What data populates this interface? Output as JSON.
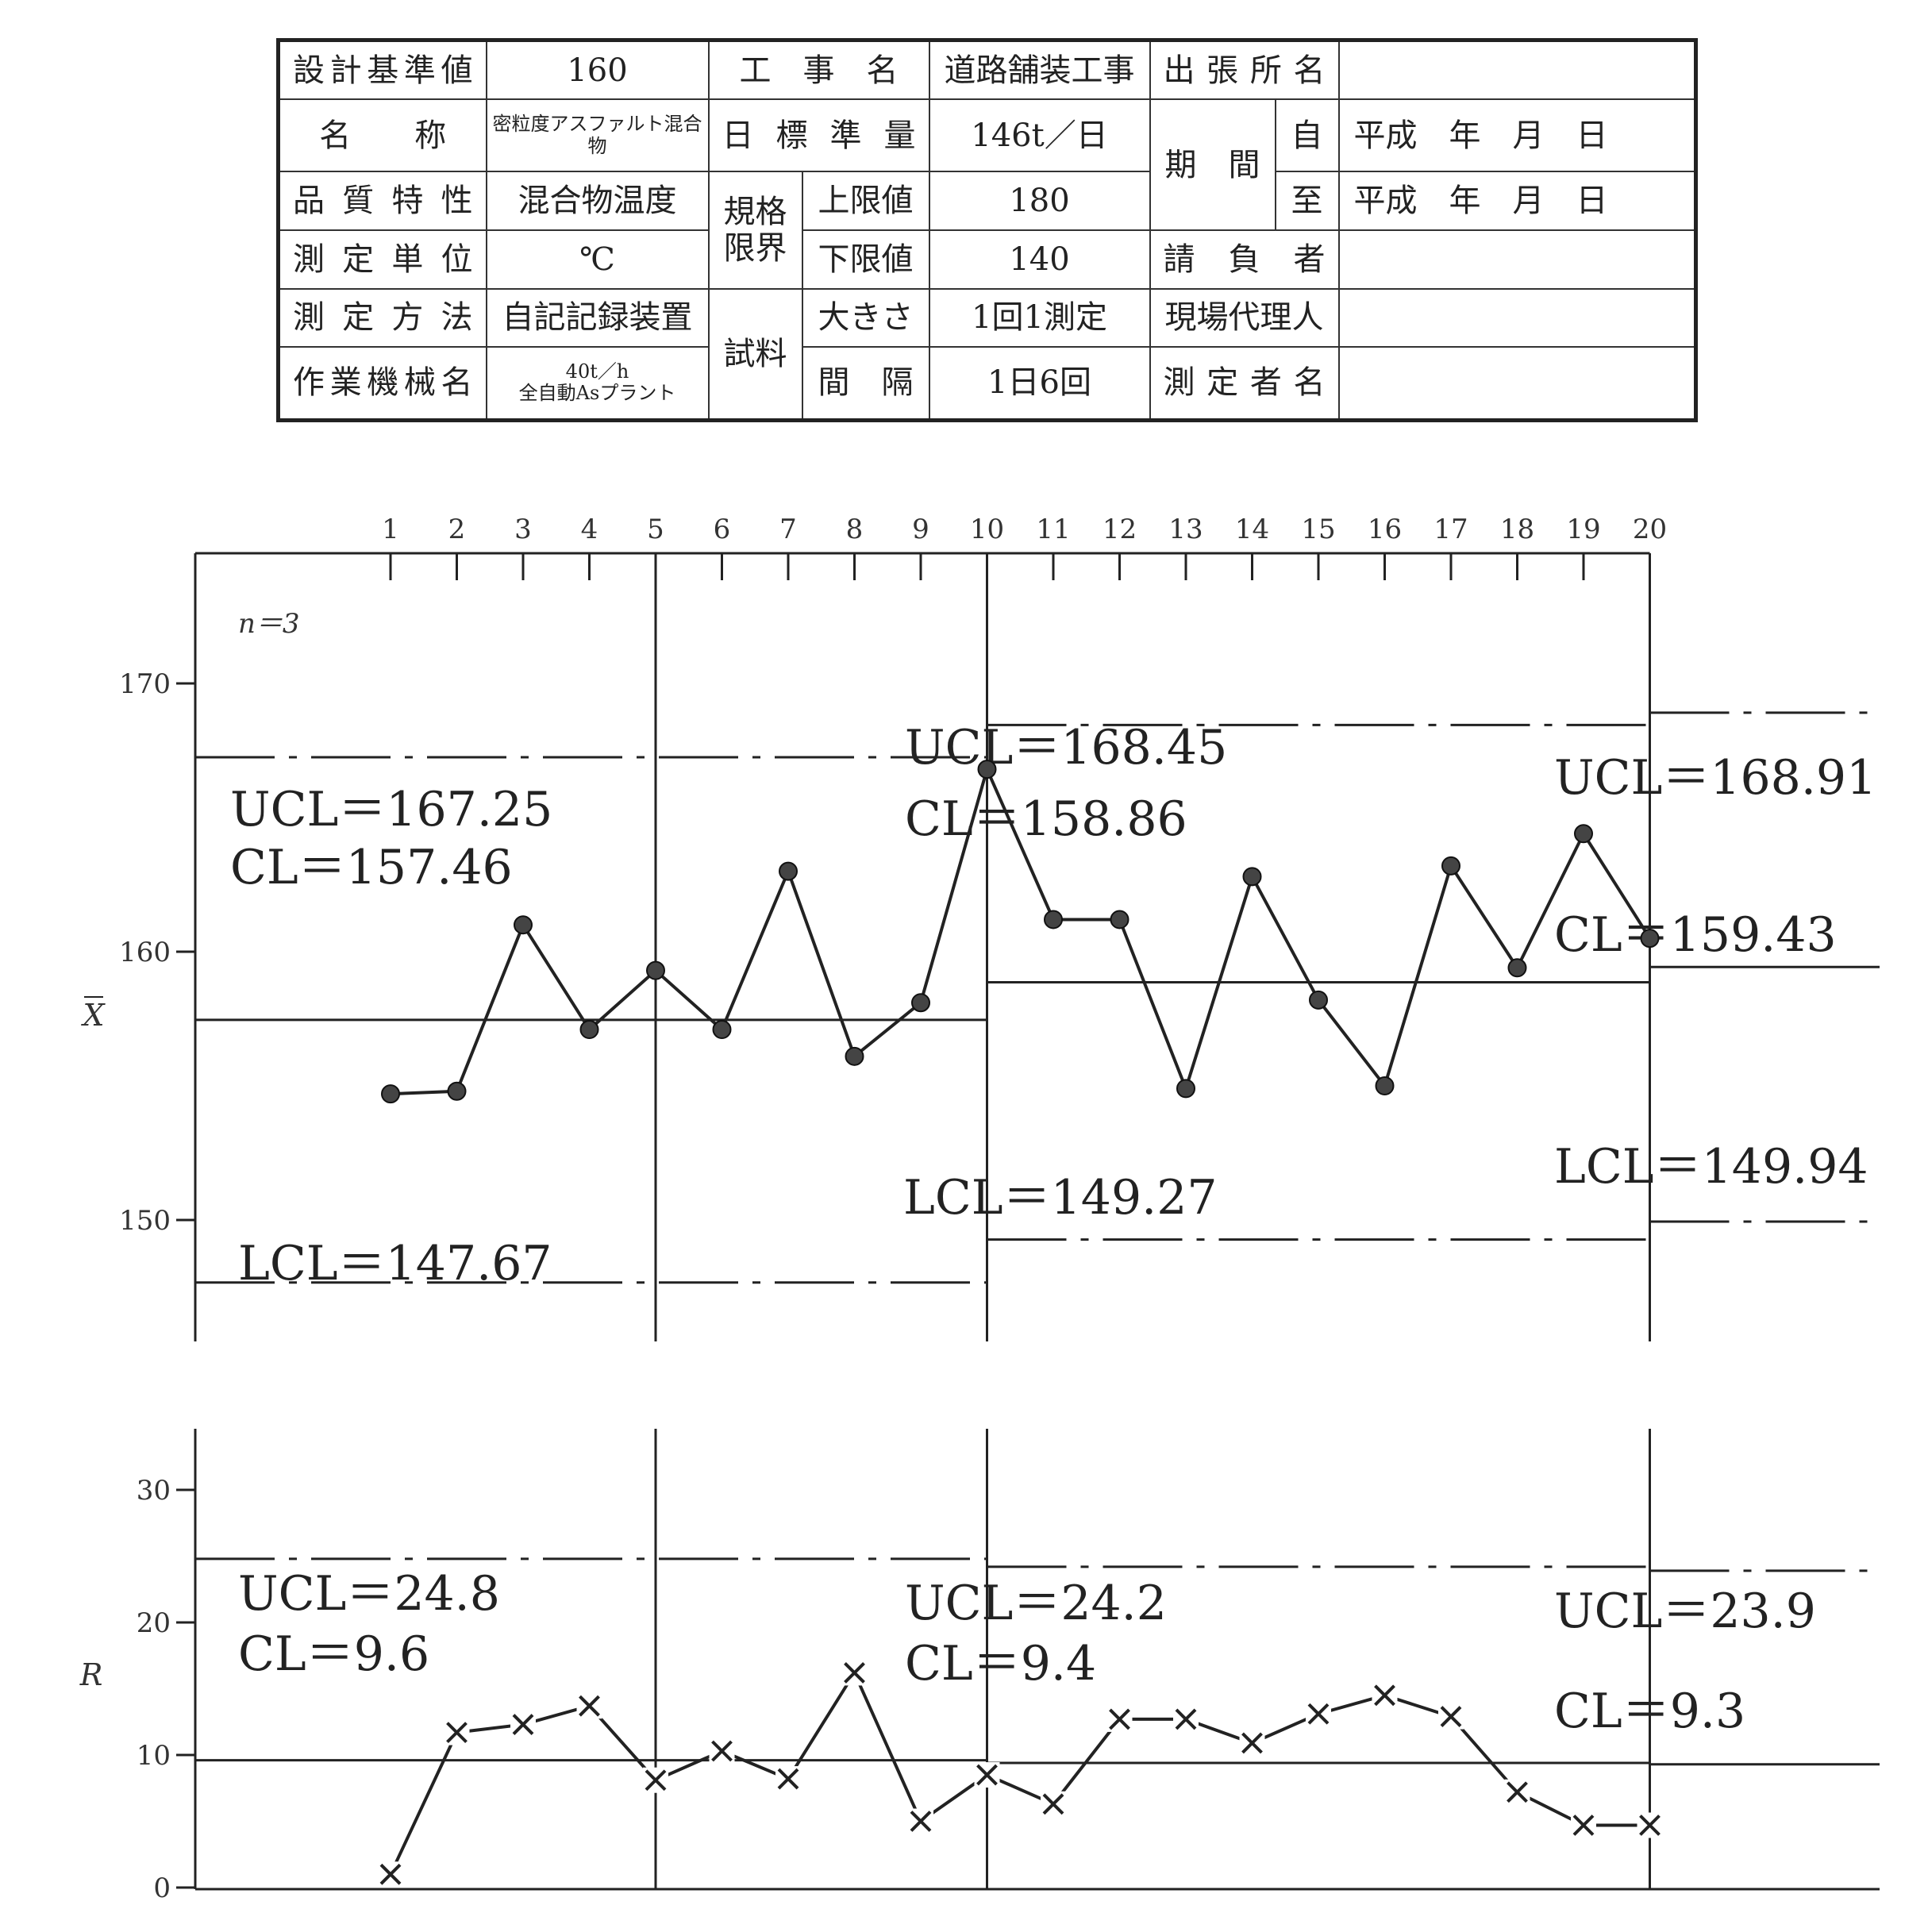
{
  "info_table": {
    "design_standard_label": "設計基準値",
    "design_standard_value": "160",
    "project_label": "工　事　名",
    "project_value": "道路舗装工事",
    "office_label": "出張所名",
    "office_value": "",
    "name_label": "名　　称",
    "name_value": "密粒度アスファルト混合物",
    "daily_target_label": "日標準量",
    "daily_target_value": "146t／日",
    "period_label": "期　間",
    "period_from_label": "自",
    "period_from_value": "平成　年　月　日",
    "period_to_label": "至",
    "period_to_value": "平成　年　月　日",
    "quality_label": "品質特性",
    "quality_value": "混合物温度",
    "spec_limit_label": "規格限界",
    "upper_limit_label": "上限値",
    "upper_limit_value": "180",
    "unit_label": "測定単位",
    "unit_value": "℃",
    "lower_limit_label": "下限値",
    "lower_limit_value": "140",
    "contractor_label": "請　負　者",
    "contractor_value": "",
    "method_label": "測定方法",
    "method_value": "自記記録装置",
    "sample_label": "試料",
    "size_label": "大きさ",
    "size_value": "1回1測定",
    "agent_label": "現場代理人",
    "agent_value": "",
    "machine_label": "作業機械名",
    "machine_value_line1": "40t／h",
    "machine_value_line2": "全自動Asプラント",
    "interval_label": "間　隔",
    "interval_value": "1日6回",
    "measurer_label": "測定者名",
    "measurer_value": ""
  },
  "chart_data": [
    {
      "type": "line",
      "chart": "xbar",
      "axis_symbol": "X",
      "sample_size_label": "n＝3",
      "x": [
        1,
        2,
        3,
        4,
        5,
        6,
        7,
        8,
        9,
        10,
        11,
        12,
        13,
        14,
        15,
        16,
        17,
        18,
        19,
        20
      ],
      "x_tick_labels": [
        "1",
        "2",
        "3",
        "4",
        "5",
        "6",
        "7",
        "8",
        "9",
        "10",
        "11",
        "12",
        "13",
        "14",
        "15",
        "16",
        "17",
        "18",
        "19",
        "20"
      ],
      "values": [
        154.7,
        154.8,
        161.0,
        157.1,
        159.3,
        157.1,
        163.0,
        156.1,
        158.1,
        166.8,
        161.2,
        161.2,
        154.9,
        162.8,
        158.2,
        155.0,
        163.2,
        159.4,
        164.4,
        160.5
      ],
      "ylim": [
        144,
        174
      ],
      "y_ticks": [
        150,
        160,
        170
      ],
      "point_marker": "circle",
      "control_limits": [
        {
          "x_range": [
            0,
            10
          ],
          "UCL": 167.25,
          "CL": 157.46,
          "LCL": 147.67,
          "UCL_label": "UCL＝167.25",
          "CL_label": "CL＝157.46",
          "LCL_label": "LCL＝147.67"
        },
        {
          "x_range": [
            10,
            20
          ],
          "UCL": 168.45,
          "CL": 158.86,
          "LCL": 149.27,
          "UCL_label": "UCL＝168.45",
          "CL_label": "CL＝158.86",
          "LCL_label": "LCL＝149.27"
        },
        {
          "x_range": [
            20,
            25.3
          ],
          "UCL": 168.91,
          "CL": 159.43,
          "LCL": 149.94,
          "UCL_label": "UCL＝168.91",
          "CL_label": "CL＝159.43",
          "LCL_label": "LCL＝149.94"
        }
      ]
    },
    {
      "type": "line",
      "chart": "range",
      "axis_symbol": "R",
      "x": [
        1,
        2,
        3,
        4,
        5,
        6,
        7,
        8,
        9,
        10,
        11,
        12,
        13,
        14,
        15,
        16,
        17,
        18,
        19,
        20
      ],
      "values": [
        1,
        11.7,
        12.3,
        13.7,
        8.1,
        10.3,
        8.2,
        16.2,
        5.0,
        8.5,
        6.3,
        12.7,
        12.7,
        10.9,
        13.1,
        14.5,
        12.9,
        7.2,
        4.7,
        4.7
      ],
      "ylim": [
        0,
        35
      ],
      "y_ticks": [
        0,
        10,
        20,
        30
      ],
      "point_marker": "cross",
      "control_limits": [
        {
          "x_range": [
            0,
            10
          ],
          "UCL": 24.8,
          "CL": 9.6,
          "UCL_label": "UCL＝24.8",
          "CL_label": "CL＝9.6"
        },
        {
          "x_range": [
            10,
            20
          ],
          "UCL": 24.2,
          "CL": 9.4,
          "UCL_label": "UCL＝24.2",
          "CL_label": "CL＝9.4"
        },
        {
          "x_range": [
            20,
            25.3
          ],
          "UCL": 23.9,
          "CL": 9.3,
          "UCL_label": "UCL＝23.9",
          "CL_label": "CL＝9.3"
        }
      ]
    }
  ]
}
